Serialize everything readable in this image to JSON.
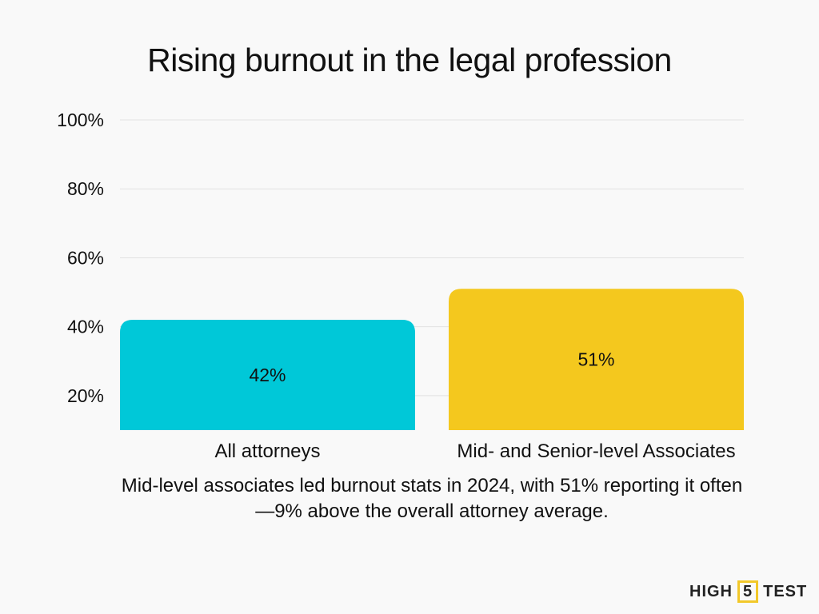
{
  "chart_data": {
    "type": "bar",
    "title": "Rising burnout in the legal profession",
    "categories": [
      "All attorneys",
      "Mid- and Senior-level Associates"
    ],
    "values": [
      42,
      51
    ],
    "data_labels": [
      "42%",
      "51%"
    ],
    "colors": [
      "#00c8d8",
      "#f4c81e"
    ],
    "xlabel": "",
    "ylabel": "",
    "ylim": [
      10,
      100
    ],
    "yticks": [
      20,
      40,
      60,
      80,
      100
    ],
    "ytick_labels": [
      "20%",
      "40%",
      "60%",
      "80%",
      "100%"
    ],
    "grid": true,
    "caption": "Mid-level associates led burnout stats in 2024, with 51% reporting it often—9% above the overall attorney average."
  },
  "logo": {
    "left": "HIGH",
    "middle": "5",
    "right": "TEST"
  }
}
